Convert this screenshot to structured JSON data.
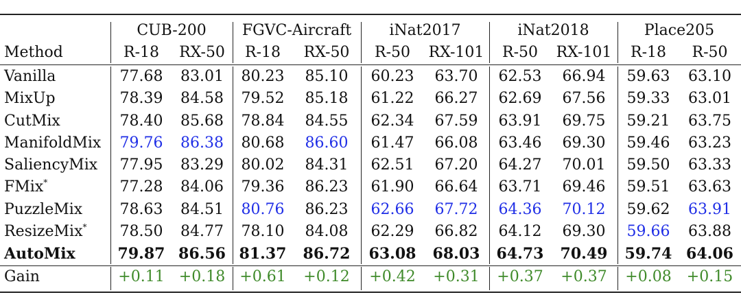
{
  "table": {
    "method_header": "Method",
    "groups": [
      {
        "name": "CUB-200",
        "cols": [
          "R-18",
          "RX-50"
        ]
      },
      {
        "name": "FGVC-Aircraft",
        "cols": [
          "R-18",
          "RX-50"
        ]
      },
      {
        "name": "iNat2017",
        "cols": [
          "R-50",
          "RX-101"
        ]
      },
      {
        "name": "iNat2018",
        "cols": [
          "R-50",
          "RX-101"
        ]
      },
      {
        "name": "Place205",
        "cols": [
          "R-18",
          "R-50"
        ]
      }
    ],
    "rows": [
      {
        "method": "Vanilla",
        "sup": "",
        "values": [
          "77.68",
          "83.01",
          "80.23",
          "85.10",
          "60.23",
          "63.70",
          "62.53",
          "66.94",
          "59.63",
          "63.10"
        ],
        "blue": []
      },
      {
        "method": "MixUp",
        "sup": "",
        "values": [
          "78.39",
          "84.58",
          "79.52",
          "85.18",
          "61.22",
          "66.27",
          "62.69",
          "67.56",
          "59.33",
          "63.01"
        ],
        "blue": []
      },
      {
        "method": "CutMix",
        "sup": "",
        "values": [
          "78.40",
          "85.68",
          "78.84",
          "84.55",
          "62.34",
          "67.59",
          "63.91",
          "69.75",
          "59.21",
          "63.75"
        ],
        "blue": []
      },
      {
        "method": "ManifoldMix",
        "sup": "",
        "values": [
          "79.76",
          "86.38",
          "80.68",
          "86.60",
          "61.47",
          "66.08",
          "63.46",
          "69.30",
          "59.46",
          "63.23"
        ],
        "blue": [
          0,
          1,
          3
        ]
      },
      {
        "method": "SaliencyMix",
        "sup": "",
        "values": [
          "77.95",
          "83.29",
          "80.02",
          "84.31",
          "62.51",
          "67.20",
          "64.27",
          "70.01",
          "59.50",
          "63.33"
        ],
        "blue": []
      },
      {
        "method": "FMix",
        "sup": "*",
        "values": [
          "77.28",
          "84.06",
          "79.36",
          "86.23",
          "61.90",
          "66.64",
          "63.71",
          "69.46",
          "59.51",
          "63.63"
        ],
        "blue": []
      },
      {
        "method": "PuzzleMix",
        "sup": "",
        "values": [
          "78.63",
          "84.51",
          "80.76",
          "86.23",
          "62.66",
          "67.72",
          "64.36",
          "70.12",
          "59.62",
          "63.91"
        ],
        "blue": [
          2,
          4,
          5,
          6,
          7,
          9
        ]
      },
      {
        "method": "ResizeMix",
        "sup": "*",
        "values": [
          "78.50",
          "84.77",
          "78.10",
          "84.08",
          "62.29",
          "66.82",
          "64.12",
          "69.30",
          "59.66",
          "63.88"
        ],
        "blue": [
          8
        ]
      },
      {
        "method": "AutoMix",
        "sup": "",
        "values": [
          "79.87",
          "86.56",
          "81.37",
          "86.72",
          "63.08",
          "68.03",
          "64.73",
          "70.49",
          "59.74",
          "64.06"
        ],
        "blue": [],
        "bold": true
      }
    ],
    "gain": {
      "method": "Gain",
      "values": [
        "+0.11",
        "+0.18",
        "+0.61",
        "+0.12",
        "+0.42",
        "+0.31",
        "+0.37",
        "+0.37",
        "+0.08",
        "+0.15"
      ]
    },
    "colors": {
      "blue": "#1f2ee6",
      "green": "#3f8a2a",
      "rule": "#222222"
    }
  }
}
